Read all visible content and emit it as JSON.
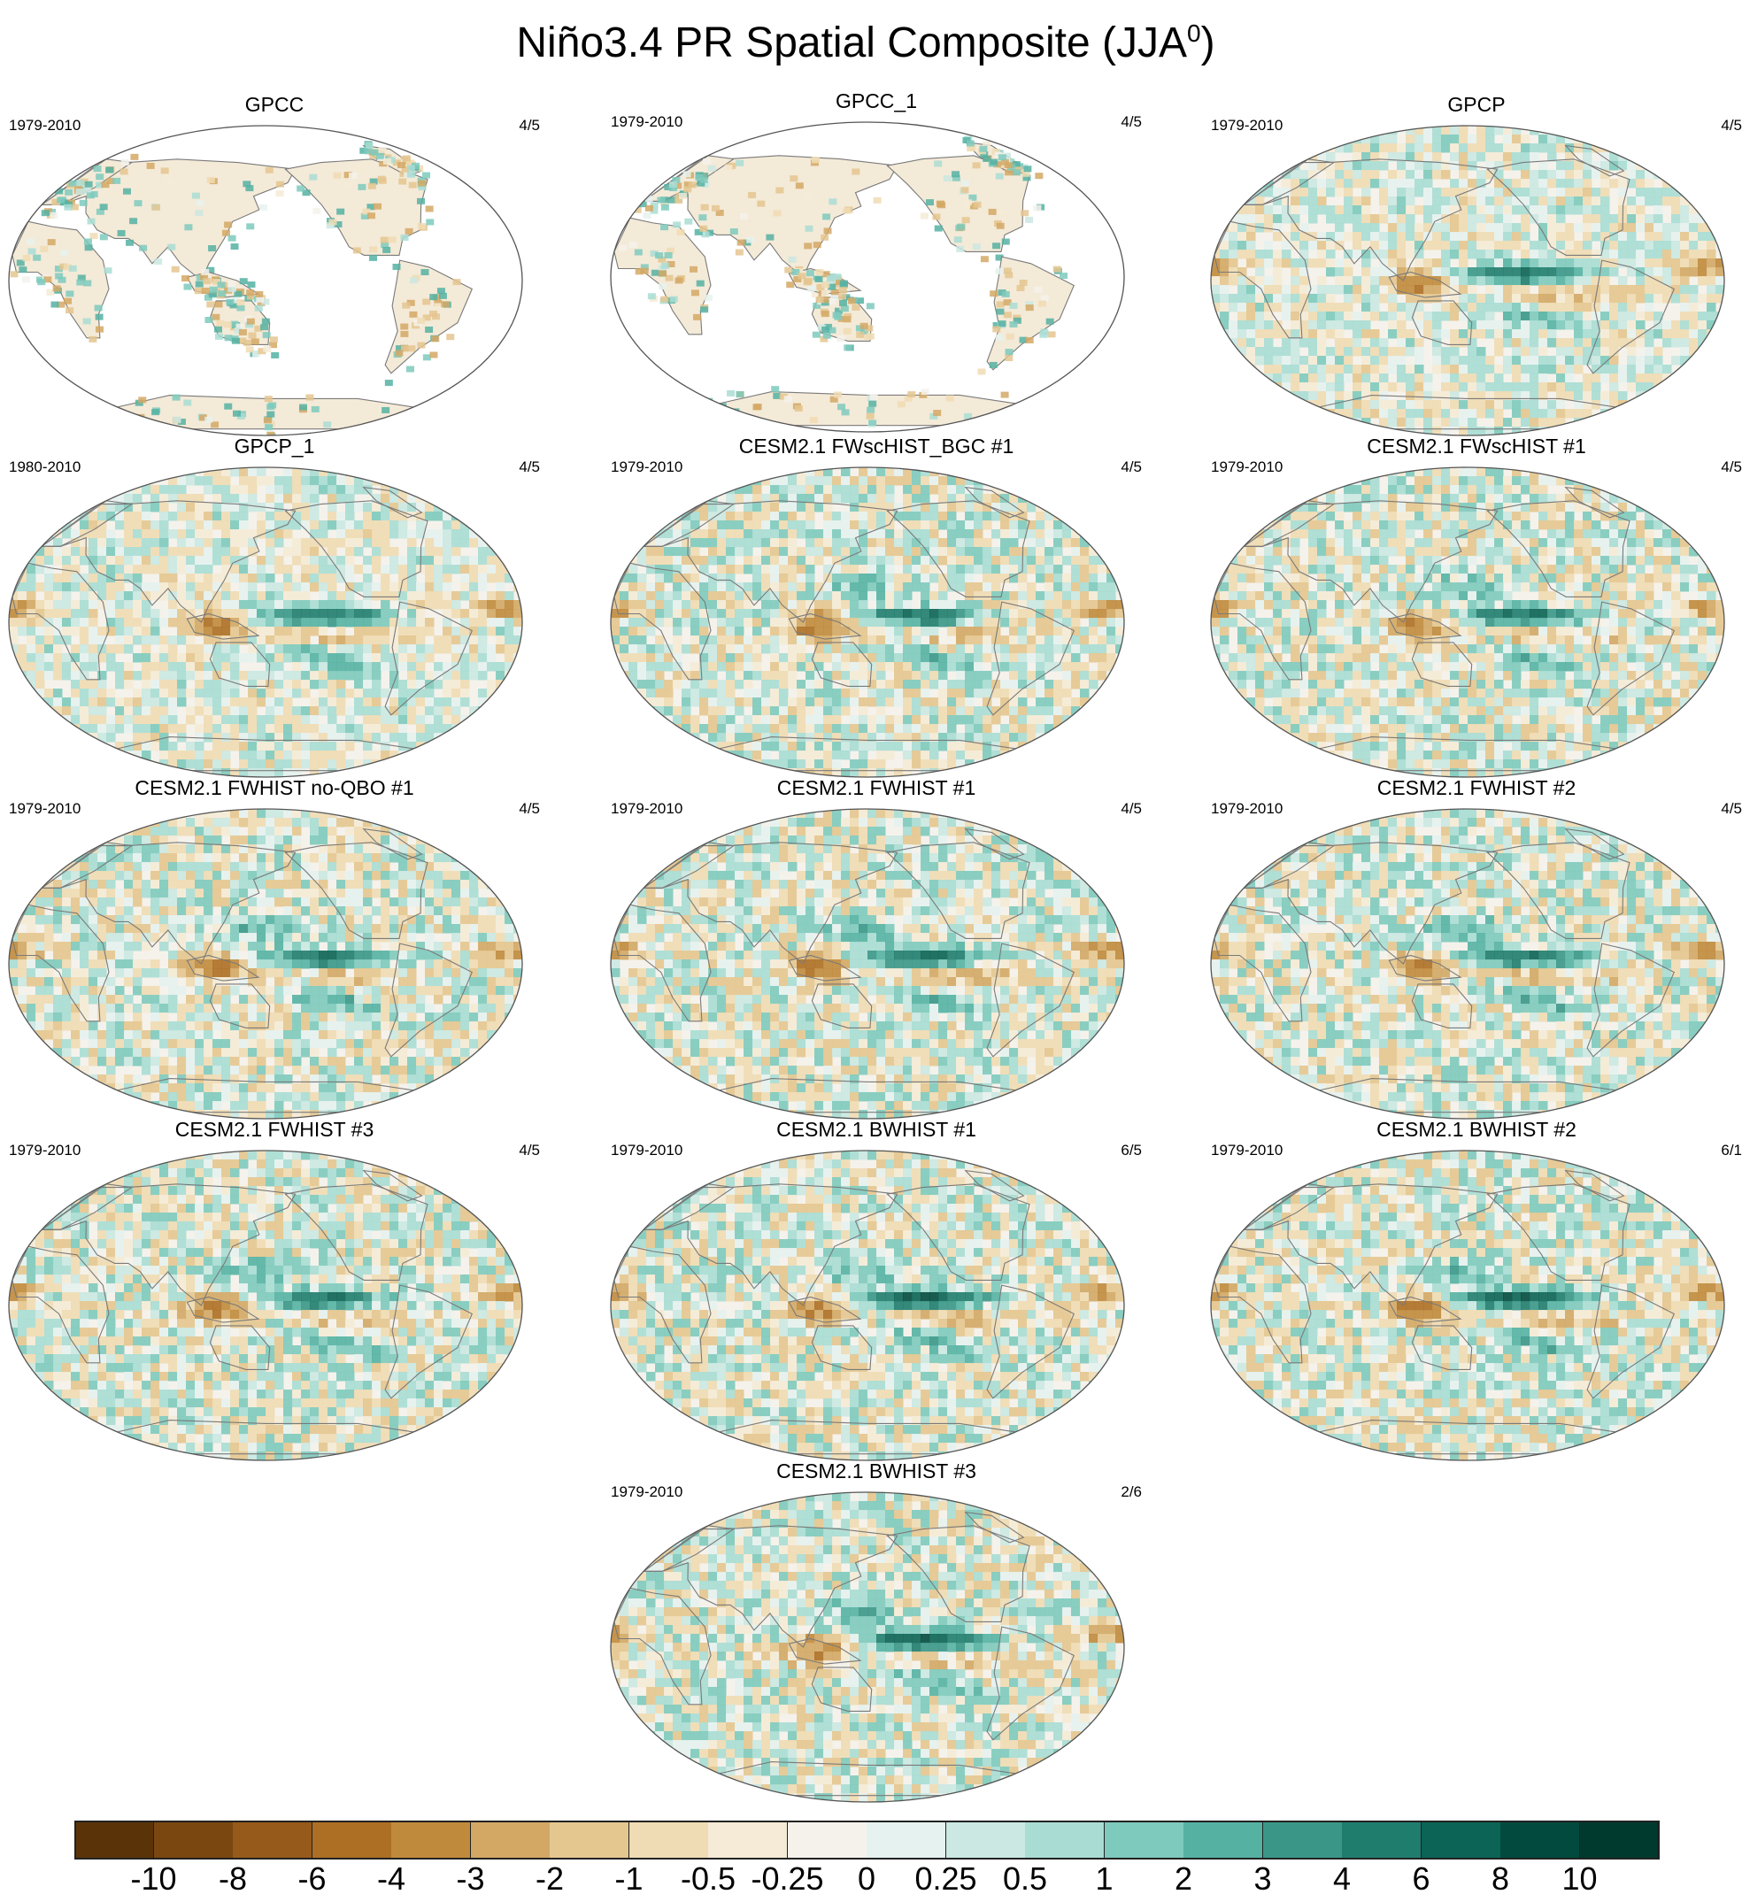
{
  "title": {
    "main": "Niño3.4 PR Spatial Composite (JJA",
    "superscript": "0",
    "close": ")"
  },
  "panels": [
    {
      "title": "GPCC",
      "period": "1979-2010",
      "count": "4/5",
      "style": "land"
    },
    {
      "title": "GPCC_1",
      "period": "1979-2010",
      "count": "4/5",
      "style": "land"
    },
    {
      "title": "GPCP",
      "period": "1979-2010",
      "count": "4/5",
      "style": "obs"
    },
    {
      "title": "GPCP_1",
      "period": "1980-2010",
      "count": "4/5",
      "style": "obs"
    },
    {
      "title": "CESM2.1 FWscHIST_BGC #1",
      "period": "1979-2010",
      "count": "4/5",
      "style": "model"
    },
    {
      "title": "CESM2.1 FWscHIST #1",
      "period": "1979-2010",
      "count": "4/5",
      "style": "model"
    },
    {
      "title": "CESM2.1 FWHIST no-QBO #1",
      "period": "1979-2010",
      "count": "4/5",
      "style": "model"
    },
    {
      "title": "CESM2.1 FWHIST #1",
      "period": "1979-2010",
      "count": "4/5",
      "style": "model"
    },
    {
      "title": "CESM2.1 FWHIST #2",
      "period": "1979-2010",
      "count": "4/5",
      "style": "model"
    },
    {
      "title": "CESM2.1 FWHIST #3",
      "period": "1979-2010",
      "count": "4/5",
      "style": "model"
    },
    {
      "title": "CESM2.1 BWHIST #1",
      "period": "1979-2010",
      "count": "6/5",
      "style": "strong"
    },
    {
      "title": "CESM2.1 BWHIST #2",
      "period": "1979-2010",
      "count": "6/1",
      "style": "strong"
    },
    {
      "title": "CESM2.1 BWHIST #3",
      "period": "1979-2010",
      "count": "2/6",
      "style": "strong"
    }
  ],
  "colorbar": {
    "labels": [
      "-10",
      "-8",
      "-6",
      "-4",
      "-3",
      "-2",
      "-1",
      "-0.5",
      "-0.25",
      "0",
      "0.25",
      "0.5",
      "1",
      "2",
      "3",
      "4",
      "6",
      "8",
      "10"
    ],
    "colors": [
      "#5a3408",
      "#7a4710",
      "#965a1a",
      "#ad6f24",
      "#c08a3c",
      "#d3a865",
      "#e4c68f",
      "#f0dcb4",
      "#f5ebd6",
      "#f5f2ec",
      "#e6f2ef",
      "#cbe8e2",
      "#a9ddd4",
      "#7ecabd",
      "#55b2a3",
      "#3a9788",
      "#1f7d6e",
      "#0b6455",
      "#014a3d",
      "#003a2e"
    ]
  },
  "colors": {
    "land_outline": "#7a7a7a",
    "map_border": "#555555",
    "ocean_base": "#f5f2ec"
  }
}
